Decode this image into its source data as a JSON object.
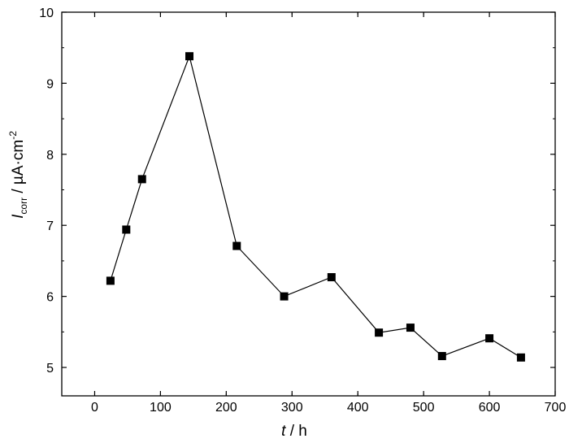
{
  "chart_data": {
    "type": "line",
    "xlabel": {
      "symbol": "t",
      "rest": " / h"
    },
    "ylabel": {
      "symbol": "I",
      "subscript": "corr",
      "unit": " / µA·cm",
      "superscript": "-2"
    },
    "xlim": [
      -50,
      700
    ],
    "ylim": [
      4.6,
      10
    ],
    "x_ticks": [
      0,
      100,
      200,
      300,
      400,
      500,
      600,
      700
    ],
    "y_ticks": [
      5,
      6,
      7,
      8,
      9,
      10
    ],
    "grid": false,
    "legend": "none",
    "marker": "square",
    "series": [
      {
        "x": [
          24,
          48,
          72,
          144,
          216,
          288,
          360,
          432,
          480,
          528,
          600,
          648
        ],
        "y": [
          6.22,
          6.94,
          7.65,
          9.38,
          6.71,
          6.0,
          6.27,
          5.49,
          5.56,
          5.16,
          5.41,
          5.14
        ]
      }
    ]
  }
}
